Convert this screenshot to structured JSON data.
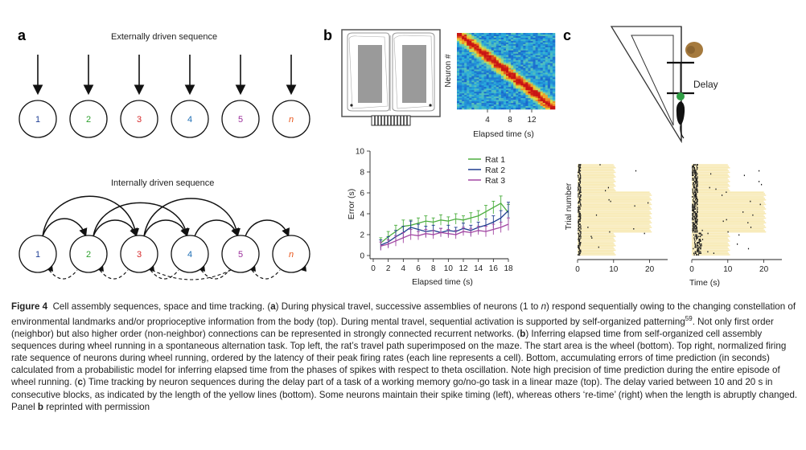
{
  "panels": {
    "a_letter": "a",
    "b_letter": "b",
    "c_letter": "c"
  },
  "panel_a": {
    "top_title": "Externally driven sequence",
    "bottom_title": "Internally driven sequence",
    "neuron_labels": [
      "1",
      "2",
      "3",
      "4",
      "5",
      "n"
    ],
    "neuron_colors": [
      "#1f3f95",
      "#2ca02c",
      "#d62728",
      "#1f6fb5",
      "#9b2d9b",
      "#e8561c"
    ]
  },
  "panel_b_heatmap": {
    "ylabel": "Neuron #",
    "xlabel": "Elapsed time (s)",
    "xticks": [
      "4",
      "8",
      "12"
    ]
  },
  "panel_c": {
    "delay_label": "Delay",
    "ylabel": "Trial number",
    "xlabel": "Time (s)",
    "xticks_left": [
      "0",
      "10",
      "20"
    ],
    "xticks_right": [
      "0",
      "10",
      "20"
    ]
  },
  "chart_data": {
    "type": "line",
    "xlabel": "Elapsed time (s)",
    "ylabel": "Error (s)",
    "xlim": [
      0,
      18
    ],
    "ylim": [
      0,
      10
    ],
    "xticks": [
      0,
      2,
      4,
      6,
      8,
      10,
      12,
      14,
      16,
      18
    ],
    "yticks": [
      0,
      2,
      4,
      6,
      8,
      10
    ],
    "legend_position": "top-right",
    "x": [
      1,
      2,
      3,
      4,
      5,
      6,
      7,
      8,
      9,
      10,
      11,
      12,
      13,
      14,
      15,
      16,
      17,
      18
    ],
    "series": [
      {
        "name": "Rat 1",
        "color": "#4cae3f",
        "values": [
          1.2,
          1.8,
          2.3,
          2.8,
          2.9,
          3.1,
          3.3,
          3.2,
          3.4,
          3.3,
          3.5,
          3.4,
          3.6,
          3.8,
          4.2,
          4.6,
          5.0,
          4.1
        ],
        "errors": [
          0.5,
          0.5,
          0.6,
          0.6,
          0.5,
          0.5,
          0.5,
          0.4,
          0.5,
          0.4,
          0.5,
          0.4,
          0.5,
          0.5,
          0.6,
          0.6,
          0.7,
          0.8
        ]
      },
      {
        "name": "Rat 2",
        "color": "#1f3c8f",
        "values": [
          1.0,
          1.3,
          1.8,
          2.2,
          2.7,
          2.5,
          2.3,
          2.4,
          2.2,
          2.4,
          2.3,
          2.6,
          2.4,
          2.7,
          2.9,
          3.2,
          3.6,
          4.3
        ],
        "errors": [
          0.5,
          0.5,
          0.6,
          0.6,
          0.6,
          0.5,
          0.5,
          0.5,
          0.4,
          0.5,
          0.4,
          0.5,
          0.5,
          0.5,
          0.6,
          0.6,
          0.7,
          0.8
        ]
      },
      {
        "name": "Rat 3",
        "color": "#a347a3",
        "values": [
          0.9,
          1.1,
          1.4,
          1.7,
          2.0,
          1.9,
          2.1,
          2.0,
          2.2,
          2.1,
          2.0,
          2.3,
          2.2,
          2.4,
          2.3,
          2.5,
          2.7,
          3.0
        ],
        "errors": [
          0.4,
          0.4,
          0.5,
          0.5,
          0.5,
          0.4,
          0.4,
          0.4,
          0.4,
          0.4,
          0.4,
          0.4,
          0.4,
          0.4,
          0.5,
          0.5,
          0.5,
          0.6
        ]
      }
    ]
  },
  "caption": {
    "fig": "Figure 4",
    "p1": "Cell assembly sequences, space and time tracking. (",
    "a": "a",
    "p2": ") During physical travel, successive assemblies of neurons (1 to ",
    "n": "n",
    "p3": ") respond sequentially owing to the changing constellation of environmental landmarks and/or proprioceptive information from the body (top). During mental travel, sequential activation is supported by self-organized patterning",
    "ref59": "59",
    "p4": ". Not only first order (neighbor) but also higher order (non-neighbor) connections can be represented in strongly connected recurrent networks. (",
    "b": "b",
    "p5": ") Inferring elapsed time from self-organized cell assembly sequences during wheel running in a spontaneous alternation task. Top left, the rat’s travel path superimposed on the maze. The start area is the wheel (bottom). Top right, normalized firing rate sequence of neurons during wheel running, ordered by the latency of their peak firing rates (each line represents a cell). Bottom, accumulating errors of time prediction (in seconds) calculated from a probabilistic model for inferring elapsed time from the phases of spikes with respect to theta oscillation. Note high precision of time prediction during the entire episode of wheel running. (",
    "c": "c",
    "p6": ") Time tracking by neuron sequences during the delay part of a task of a working memory go/no-go task in a linear maze (top). The delay varied between 10 and 20 s in consecutive blocks, as indicated by the length of the yellow lines (bottom). Some neurons maintain their spike timing (left), whereas others ‘re-time’ (right) when the length is abruptly changed. Panel ",
    "b2": "b",
    "p7": " reprinted with permission"
  }
}
